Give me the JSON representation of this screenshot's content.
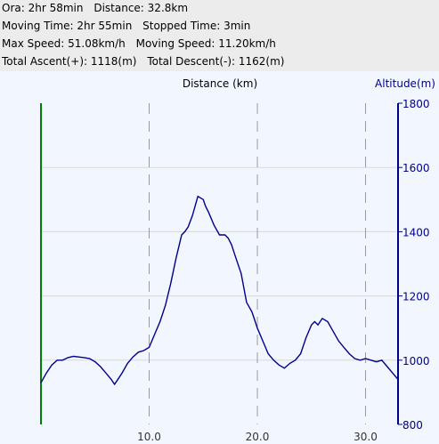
{
  "stats": {
    "ora_label": "Ora:",
    "ora_value": "2hr 58min",
    "distance_label": "Distance:",
    "distance_value": "32.8km",
    "moving_time_label": "Moving Time:",
    "moving_time_value": "2hr 55min",
    "stopped_time_label": "Stopped Time:",
    "stopped_time_value": "3min",
    "max_speed_label": "Max Speed:",
    "max_speed_value": "51.08km/h",
    "moving_speed_label": "Moving Speed:",
    "moving_speed_value": "11.20km/h",
    "total_ascent_label": "Total Ascent(+):",
    "total_ascent_value": "1118(m)",
    "total_descent_label": "Total Descent(-):",
    "total_descent_value": "1162(m)"
  },
  "colors": {
    "line": "#00008b",
    "left_axis": "#008000",
    "grid": "#9a9a9a",
    "panel": "#ececec",
    "plot_bg": "#f2f7ff"
  },
  "chart_data": {
    "type": "line",
    "title": "",
    "xlabel": "Distance (km)",
    "ylabel": "Altitude(m)",
    "xlim": [
      0,
      33
    ],
    "ylim": [
      800,
      1800
    ],
    "x_ticks": [
      10,
      20,
      30
    ],
    "x_tick_labels": [
      "10.0",
      "20.0",
      "30.0"
    ],
    "y_ticks": [
      800,
      1000,
      1200,
      1400,
      1600,
      1800
    ],
    "y_tick_labels": [
      "800",
      "1000",
      "1200",
      "1400",
      "1600",
      "1800"
    ],
    "grid": true,
    "series": [
      {
        "x": [
          0,
          0.5,
          1,
          1.5,
          2,
          2.5,
          3,
          3.5,
          4,
          4.5,
          5,
          5.5,
          6,
          6.5,
          6.8,
          7,
          7.5,
          8,
          8.5,
          9,
          9.5,
          10,
          10.5,
          11,
          11.5,
          12,
          12.5,
          13,
          13.3,
          13.6,
          14,
          14.5,
          15,
          15.2,
          15.5,
          16,
          16.5,
          17,
          17.3,
          17.6,
          18,
          18.5,
          19,
          19.5,
          20,
          20.5,
          21,
          21.5,
          22,
          22.5,
          23,
          23.5,
          24,
          24.5,
          25,
          25.3,
          25.6,
          26,
          26.5,
          27,
          27.5,
          28,
          28.5,
          29,
          29.5,
          30,
          30.5,
          31,
          31.5,
          32,
          32.5,
          33
        ],
        "y": [
          930,
          960,
          985,
          1000,
          1000,
          1008,
          1012,
          1010,
          1008,
          1005,
          995,
          980,
          960,
          940,
          925,
          935,
          960,
          990,
          1010,
          1025,
          1030,
          1040,
          1080,
          1120,
          1170,
          1240,
          1320,
          1390,
          1400,
          1415,
          1450,
          1510,
          1500,
          1480,
          1460,
          1420,
          1390,
          1390,
          1380,
          1360,
          1320,
          1270,
          1180,
          1150,
          1100,
          1060,
          1020,
          1000,
          985,
          975,
          990,
          1000,
          1020,
          1070,
          1110,
          1120,
          1110,
          1130,
          1120,
          1090,
          1060,
          1040,
          1020,
          1005,
          1000,
          1005,
          1000,
          995,
          1000,
          980,
          960,
          940
        ]
      }
    ]
  }
}
